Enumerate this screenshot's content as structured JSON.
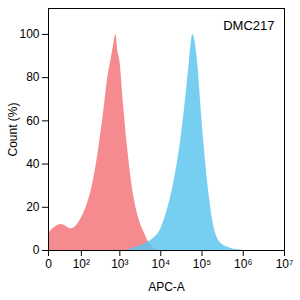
{
  "chart_data": {
    "type": "area",
    "title": "DMC217",
    "x_label": "APC-A",
    "y_label": "Count (%)",
    "log": "x",
    "x": [
      0,
      20,
      50,
      100,
      150,
      200,
      300,
      400,
      500,
      600,
      700,
      800,
      900,
      1000,
      1200,
      1500,
      2000,
      3000,
      4000,
      5000,
      7000,
      10000,
      15000,
      20000,
      30000,
      40000,
      50000,
      60000,
      70000,
      80000,
      100000,
      150000,
      200000,
      300000,
      500000,
      1000000
    ],
    "series": [
      {
        "color": "#f5777b",
        "values": [
          8,
          12,
          10,
          15,
          22,
          30,
          48,
          65,
          80,
          88,
          95,
          100,
          92,
          88,
          70,
          50,
          30,
          14,
          8,
          4,
          1,
          0,
          0,
          0,
          0,
          0,
          0,
          0,
          0,
          0,
          0,
          0,
          0,
          0,
          0,
          0
        ]
      },
      {
        "color": "#5ec6ee",
        "values": [
          0,
          0,
          0,
          0,
          0,
          0,
          0,
          0,
          0,
          0,
          0,
          0,
          0,
          0,
          0,
          0,
          1,
          2,
          3,
          4,
          6,
          10,
          20,
          30,
          50,
          70,
          88,
          100,
          95,
          85,
          60,
          25,
          10,
          3,
          1,
          0
        ]
      }
    ],
    "xlim": [
      0,
      10000000
    ],
    "xticks": [
      0,
      {
        "value": 100,
        "label": "10²"
      },
      {
        "value": 1000,
        "label": "10³"
      },
      {
        "value": 10000,
        "label": "10⁴"
      },
      {
        "value": 100000,
        "label": "10⁵"
      },
      {
        "value": 1000000,
        "label": "10⁶"
      },
      {
        "value": 10000000,
        "label": "10⁷"
      }
    ],
    "ylim": [
      0,
      112
    ],
    "yticks": [
      0,
      20,
      40,
      60,
      80,
      100
    ]
  }
}
